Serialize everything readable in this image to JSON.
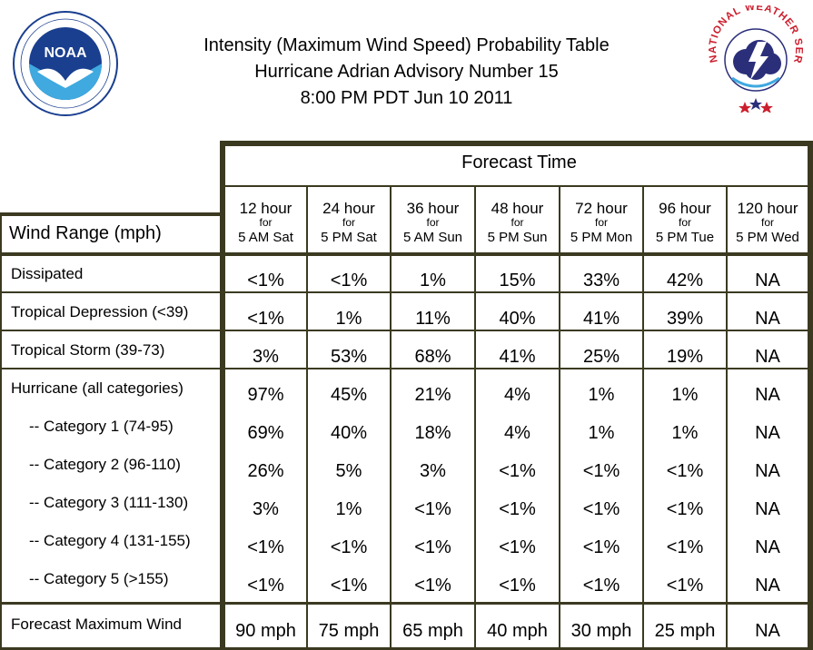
{
  "title": {
    "line1": "Intensity (Maximum Wind Speed) Probability Table",
    "line2": "Hurricane Adrian Advisory Number 15",
    "line3": "8:00 PM PDT Jun 10 2011"
  },
  "logos": {
    "left": "NOAA",
    "right": "NATIONAL WEATHER SERVICE"
  },
  "table": {
    "forecast_time_label": "Forecast Time",
    "wind_range_label": "Wind Range (mph)",
    "columns": [
      {
        "hour": "12 hour",
        "for": "for",
        "date": "5 AM Sat"
      },
      {
        "hour": "24 hour",
        "for": "for",
        "date": "5 PM Sat"
      },
      {
        "hour": "36 hour",
        "for": "for",
        "date": "5 AM Sun"
      },
      {
        "hour": "48 hour",
        "for": "for",
        "date": "5 PM Sun"
      },
      {
        "hour": "72 hour",
        "for": "for",
        "date": "5 PM Mon"
      },
      {
        "hour": "96 hour",
        "for": "for",
        "date": "5 PM Tue"
      },
      {
        "hour": "120 hour",
        "for": "for",
        "date": "5 PM Wed"
      }
    ],
    "rows": [
      {
        "label": "Dissipated",
        "values": [
          "<1%",
          "<1%",
          "1%",
          "15%",
          "33%",
          "42%",
          "NA"
        ]
      },
      {
        "label": "Tropical Depression (<39)",
        "values": [
          "<1%",
          "1%",
          "11%",
          "40%",
          "41%",
          "39%",
          "NA"
        ]
      },
      {
        "label": "Tropical Storm (39-73)",
        "values": [
          "3%",
          "53%",
          "68%",
          "41%",
          "25%",
          "19%",
          "NA"
        ]
      },
      {
        "label": "Hurricane (all categories)",
        "values": [
          "97%",
          "45%",
          "21%",
          "4%",
          "1%",
          "1%",
          "NA"
        ]
      },
      {
        "label": "-- Category 1 (74-95)",
        "values": [
          "69%",
          "40%",
          "18%",
          "4%",
          "1%",
          "1%",
          "NA"
        ]
      },
      {
        "label": "-- Category 2 (96-110)",
        "values": [
          "26%",
          "5%",
          "3%",
          "<1%",
          "<1%",
          "<1%",
          "NA"
        ]
      },
      {
        "label": "-- Category 3 (111-130)",
        "values": [
          "3%",
          "1%",
          "<1%",
          "<1%",
          "<1%",
          "<1%",
          "NA"
        ]
      },
      {
        "label": "-- Category 4 (131-155)",
        "values": [
          "<1%",
          "<1%",
          "<1%",
          "<1%",
          "<1%",
          "<1%",
          "NA"
        ]
      },
      {
        "label": "-- Category 5 (>155)",
        "values": [
          "<1%",
          "<1%",
          "<1%",
          "<1%",
          "<1%",
          "<1%",
          "NA"
        ]
      },
      {
        "label": "Forecast Maximum Wind",
        "values": [
          "90 mph",
          "75 mph",
          "65 mph",
          "40 mph",
          "30 mph",
          "25 mph",
          "NA"
        ]
      }
    ]
  },
  "colors": {
    "rule": "#3b3a21",
    "noaa_blue": "#1a3f8f",
    "nws_red": "#cc1f2e",
    "nws_navy": "#2b2f7a"
  }
}
